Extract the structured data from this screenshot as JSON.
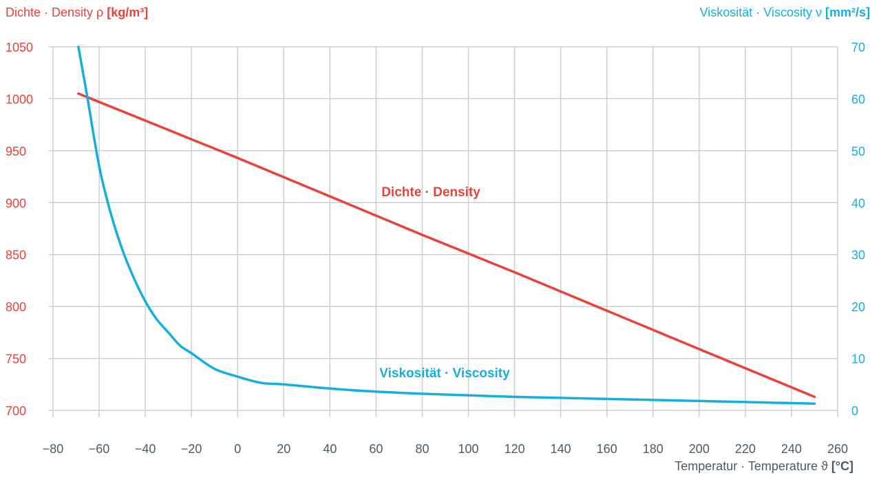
{
  "chart_data": {
    "type": "line",
    "y_left_label": {
      "text": "Dichte · Density ρ ",
      "unit": "[kg/m³]"
    },
    "y_right_label": {
      "text": "Viskosität · Viscosity ν ",
      "unit": "[mm²/s]"
    },
    "x_label": {
      "text": "Temperatur · Temperature ϑ ",
      "unit": "[°C]"
    },
    "x_range": [
      -80,
      260
    ],
    "x_ticks": [
      "−80",
      "−60",
      "−40",
      "−20",
      "0",
      "20",
      "40",
      "60",
      "80",
      "100",
      "120",
      "140",
      "160",
      "180",
      "200",
      "220",
      "240",
      "260"
    ],
    "x_tick_values": [
      -80,
      -60,
      -40,
      -20,
      0,
      20,
      40,
      60,
      80,
      100,
      120,
      140,
      160,
      180,
      200,
      220,
      240,
      260
    ],
    "y_left_range": [
      700,
      1050
    ],
    "y_left_ticks": [
      700,
      750,
      800,
      850,
      900,
      950,
      1000,
      1050
    ],
    "y_right_range": [
      0,
      70
    ],
    "y_right_ticks": [
      0,
      10,
      20,
      30,
      40,
      50,
      60,
      70
    ],
    "grid": true,
    "colors": {
      "density": "#e8423a",
      "viscosity": "#16aee0",
      "grid": "#c8d0d6",
      "x_text": "#4a5b66"
    },
    "series": [
      {
        "name": "Dichte · Density",
        "axis": "left",
        "x": [
          -69,
          -40,
          0,
          40,
          80,
          120,
          160,
          200,
          250
        ],
        "y": [
          1005,
          979,
          943,
          906,
          869,
          833,
          796,
          759,
          713
        ]
      },
      {
        "name": "Viskosität · Viscosity",
        "axis": "right",
        "x": [
          -69,
          -65,
          -60,
          -55,
          -50,
          -45,
          -40,
          -35,
          -30,
          -25,
          -20,
          -10,
          0,
          10,
          20,
          40,
          60,
          80,
          100,
          120,
          140,
          160,
          180,
          200,
          220,
          250
        ],
        "y": [
          70,
          60,
          47,
          38,
          31,
          25.5,
          21,
          17.5,
          15,
          12.5,
          11,
          8,
          6.5,
          5.3,
          5,
          4.2,
          3.6,
          3.2,
          2.9,
          2.6,
          2.4,
          2.2,
          2.0,
          1.8,
          1.6,
          1.3
        ]
      }
    ]
  }
}
